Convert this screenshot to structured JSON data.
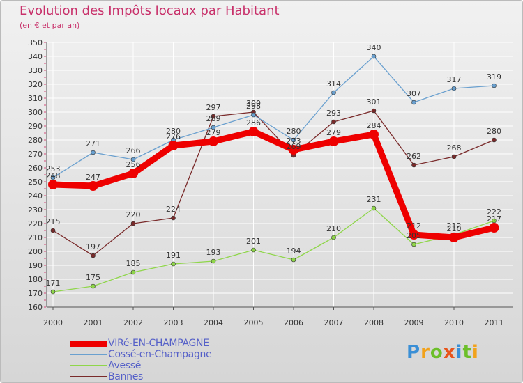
{
  "title": "Evolution des Impôts locaux par Habitant",
  "subtitle": "(en € et par an)",
  "logo": "Proxiti",
  "logo_colors": [
    "#3a8fd6",
    "#f2a21b",
    "#6cbf2a",
    "#e8541a",
    "#3a8fd6",
    "#6cbf2a",
    "#f2a21b"
  ],
  "chart_data": {
    "type": "line",
    "title": "Evolution des Impôts locaux par Habitant",
    "subtitle": "(en € et par an)",
    "xlabel": "",
    "ylabel": "",
    "categories": [
      "2000",
      "2001",
      "2002",
      "2003",
      "2004",
      "2005",
      "2006",
      "2007",
      "2008",
      "2009",
      "2010",
      "2011"
    ],
    "ylim": [
      160,
      350
    ],
    "yticks": [
      160,
      170,
      180,
      190,
      200,
      210,
      220,
      230,
      240,
      250,
      260,
      270,
      280,
      290,
      300,
      310,
      320,
      330,
      340,
      350
    ],
    "grid": true,
    "legend_position": "bottom-left",
    "series": [
      {
        "name": "Bannes",
        "color": "#7a2b2b",
        "values": [
          215,
          197,
          220,
          224,
          297,
          300,
          269,
          293,
          301,
          262,
          268,
          280
        ]
      },
      {
        "name": "Avessé",
        "color": "#8fd64a",
        "values": [
          171,
          175,
          185,
          191,
          193,
          201,
          194,
          210,
          231,
          205,
          212,
          222
        ]
      },
      {
        "name": "Cossé-en-Champagne",
        "color": "#6aa0cf",
        "values": [
          253,
          271,
          266,
          280,
          289,
          298,
          280,
          314,
          340,
          307,
          317,
          319
        ]
      },
      {
        "name": "VIRé-EN-CHAMPAGNE",
        "color": "#ee0000",
        "values": [
          248,
          247,
          256,
          276,
          279,
          286,
          273,
          279,
          284,
          212,
          210,
          217
        ]
      }
    ]
  }
}
